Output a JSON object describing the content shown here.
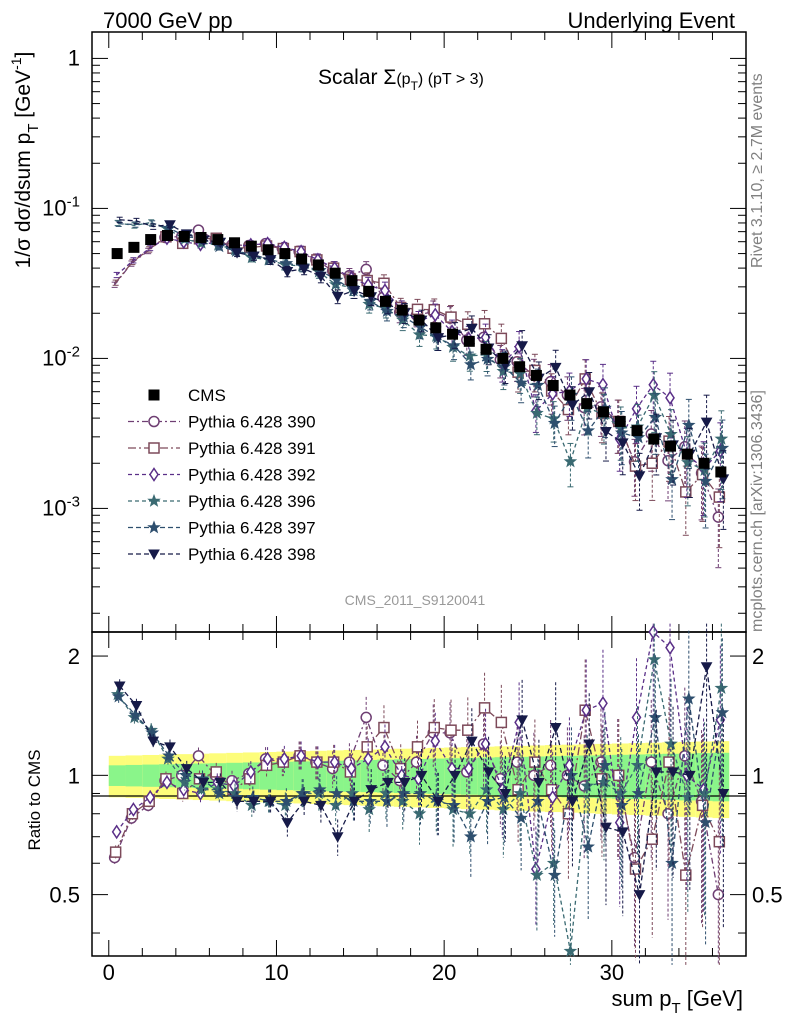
{
  "header": {
    "left": "7000 GeV pp",
    "right": "Underlying Event"
  },
  "side": {
    "rivet": "Rivet 3.1.10, ≥ 2.7M events",
    "mcplots": "mcplots.cern.ch [arXiv:1306.3436]"
  },
  "watermark": "CMS_2011_S9120041",
  "chart_data": {
    "type": "scatter",
    "title": "Scalar Σ(p_T) (pT > 3)",
    "xlabel": "sum p_T [GeV]",
    "ylabel": "1/σ dσ/dsum p_T [GeV^-1]",
    "ratio_ylabel": "Ratio to CMS",
    "xlim": [
      -1,
      38
    ],
    "ylim": [
      0.00015,
      1.5
    ],
    "ratio_ylim": [
      0.35,
      2.3
    ],
    "yscale": "log",
    "x": [
      0.5,
      1.5,
      2.5,
      3.5,
      4.5,
      5.5,
      6.5,
      7.5,
      8.5,
      9.5,
      10.5,
      11.5,
      12.5,
      13.5,
      14.5,
      15.5,
      16.5,
      17.5,
      18.5,
      19.5,
      20.5,
      21.5,
      22.5,
      23.5,
      24.5,
      25.5,
      26.5,
      27.5,
      28.5,
      29.5,
      30.5,
      31.5,
      32.5,
      33.5,
      34.5,
      35.5,
      36.5
    ],
    "x_ticks": [
      0,
      10,
      20,
      30
    ],
    "y_ticks": [
      "10^-3",
      "10^-2",
      "10^-1",
      "1"
    ],
    "ratio_ticks": [
      "0.5",
      "1",
      "2"
    ],
    "cms": {
      "name": "CMS",
      "color": "#000000",
      "values": [
        0.05,
        0.055,
        0.062,
        0.066,
        0.065,
        0.064,
        0.062,
        0.059,
        0.056,
        0.053,
        0.05,
        0.046,
        0.042,
        0.037,
        0.033,
        0.028,
        0.024,
        0.021,
        0.018,
        0.016,
        0.0145,
        0.013,
        0.0115,
        0.01,
        0.0088,
        0.0077,
        0.0066,
        0.0057,
        0.005,
        0.0044,
        0.0038,
        0.0033,
        0.0029,
        0.0026,
        0.0023,
        0.002,
        0.00175
      ],
      "band_inner": 0.06,
      "band_outer_start": 0.12,
      "band_outer_end": 0.22
    },
    "series": [
      {
        "name": "Pythia 6.428 390",
        "color": "#6f3f73",
        "marker": "circle",
        "dash": "6,3,2,3",
        "ratio": [
          0.62,
          0.78,
          0.84,
          0.97,
          1.0,
          1.12,
          1.0,
          0.97,
          1.01,
          1.1,
          1.08,
          1.12,
          1.08,
          1.04,
          1.08,
          1.4,
          1.06,
          0.97,
          1.08,
          1.28,
          1.28,
          1.02,
          1.2,
          0.98,
          1.08,
          1.0,
          1.06,
          1.0,
          0.94,
          1.08,
          1.0,
          0.62,
          1.08,
          0.8,
          1.12,
          0.86,
          0.5
        ]
      },
      {
        "name": "Pythia 6.428 391",
        "color": "#7d4a5a",
        "marker": "square",
        "dash": "8,3,2,3",
        "ratio": [
          0.64,
          0.8,
          0.86,
          0.98,
          0.9,
          0.98,
          1.02,
          0.92,
          0.98,
          1.06,
          1.08,
          1.12,
          1.08,
          1.08,
          1.02,
          1.18,
          1.32,
          1.04,
          1.18,
          1.32,
          1.3,
          1.3,
          1.48,
          1.36,
          0.92,
          1.08,
          0.92,
          0.8,
          1.46,
          0.98,
          1.0,
          0.58,
          0.69,
          1.08,
          0.56,
          0.84,
          0.68
        ]
      },
      {
        "name": "Pythia 6.428 392",
        "color": "#5a2f88",
        "marker": "diamond",
        "dash": "4,3",
        "ratio": [
          0.72,
          0.82,
          0.88,
          0.96,
          0.92,
          0.9,
          0.96,
          0.94,
          1.02,
          1.1,
          1.1,
          1.12,
          1.08,
          1.08,
          1.04,
          1.1,
          1.18,
          1.0,
          0.98,
          1.22,
          1.04,
          1.04,
          1.2,
          0.92,
          1.36,
          0.58,
          0.88,
          1.06,
          1.46,
          1.52,
          0.76,
          1.4,
          2.3,
          2.1,
          1.0,
          0.92,
          1.38
        ]
      },
      {
        "name": "Pythia 6.428 396",
        "color": "#3a6a72",
        "marker": "star",
        "dash": "4,3",
        "ratio": [
          1.6,
          1.4,
          1.3,
          1.1,
          0.96,
          0.92,
          0.92,
          0.9,
          0.84,
          0.86,
          0.84,
          0.9,
          0.9,
          0.84,
          0.9,
          0.82,
          0.9,
          0.86,
          0.8,
          0.88,
          0.82,
          0.8,
          0.92,
          0.82,
          0.9,
          0.56,
          0.6,
          0.36,
          0.94,
          0.96,
          0.9,
          1.06,
          1.96,
          1.2,
          0.88,
          0.9,
          1.66
        ]
      },
      {
        "name": "Pythia 6.428 397",
        "color": "#2e4f6e",
        "marker": "star",
        "dash": "5,3",
        "ratio": [
          1.58,
          1.42,
          1.28,
          1.12,
          1.0,
          0.98,
          0.9,
          0.88,
          0.88,
          0.86,
          0.86,
          0.9,
          0.92,
          0.9,
          0.86,
          0.86,
          0.86,
          0.9,
          0.9,
          0.86,
          0.84,
          0.7,
          0.86,
          0.88,
          0.78,
          0.86,
          0.56,
          1.0,
          0.66,
          1.06,
          0.84,
          0.9,
          1.4,
          0.6,
          1.56,
          0.76,
          1.44
        ]
      },
      {
        "name": "Pythia 6.428 398",
        "color": "#161a48",
        "marker": "triangle-down",
        "dash": "5,3",
        "ratio": [
          1.68,
          1.5,
          1.22,
          1.18,
          1.04,
          0.96,
          0.96,
          0.86,
          0.86,
          0.86,
          0.76,
          0.86,
          0.84,
          0.7,
          0.86,
          0.92,
          0.96,
          0.96,
          1.0,
          0.86,
          1.0,
          1.22,
          1.02,
          0.9,
          1.38,
          0.96,
          1.32,
          0.86,
          1.2,
          0.74,
          0.72,
          0.5,
          1.02,
          1.02,
          1.0,
          1.88,
          0.9
        ]
      }
    ]
  }
}
